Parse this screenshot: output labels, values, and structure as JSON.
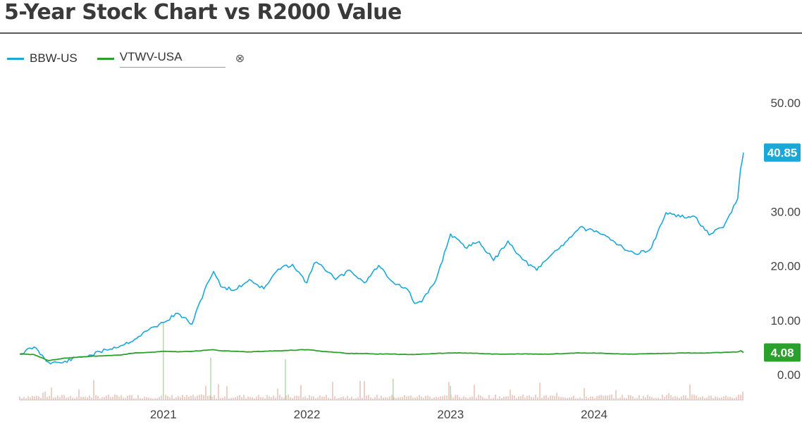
{
  "title": "5-Year Stock Chart vs R2000 Value",
  "legend": {
    "series1": "BBW-US",
    "series2": "VTWV-USA",
    "remove_icon": "⊗"
  },
  "colors": {
    "series1": "#1ba8d8",
    "series2": "#2ca02c",
    "volume": "#d9a090"
  },
  "chart_data": {
    "type": "line",
    "title": "5-Year Stock Chart vs R2000 Value",
    "xlabel": "",
    "ylabel": "",
    "ylim": [
      0,
      50
    ],
    "yticks": [
      "50.00",
      "40.00",
      "30.00",
      "20.00",
      "10.00",
      "0.00"
    ],
    "xticks": [
      "2021",
      "2022",
      "2023",
      "2024"
    ],
    "x": [
      2020.0,
      2020.1,
      2020.2,
      2020.3,
      2020.4,
      2020.5,
      2020.6,
      2020.7,
      2020.8,
      2020.9,
      2021.0,
      2021.1,
      2021.2,
      2021.3,
      2021.35,
      2021.4,
      2021.5,
      2021.6,
      2021.7,
      2021.8,
      2021.9,
      2022.0,
      2022.05,
      2022.1,
      2022.2,
      2022.3,
      2022.4,
      2022.5,
      2022.6,
      2022.7,
      2022.75,
      2022.8,
      2022.9,
      2023.0,
      2023.1,
      2023.2,
      2023.3,
      2023.4,
      2023.5,
      2023.6,
      2023.7,
      2023.8,
      2023.9,
      2024.0,
      2024.1,
      2024.2,
      2024.3,
      2024.4,
      2024.5,
      2024.6,
      2024.7,
      2024.8,
      2024.9,
      2025.0,
      2025.02,
      2025.04
    ],
    "series": [
      {
        "name": "BBW-US",
        "last_label": "40.85",
        "values": [
          3.8,
          5.1,
          2.3,
          2.2,
          3.2,
          3.6,
          4.6,
          5.3,
          6.5,
          8.3,
          9.6,
          11.3,
          9.3,
          16.5,
          19.0,
          16.2,
          15.6,
          17.5,
          15.8,
          19.4,
          20.3,
          16.9,
          20.5,
          20.2,
          17.5,
          19.2,
          16.9,
          20.1,
          17.0,
          15.7,
          13.1,
          13.4,
          17.5,
          25.9,
          23.4,
          24.5,
          21.0,
          24.6,
          21.2,
          19.2,
          22.0,
          24.4,
          27.1,
          26.3,
          25.3,
          23.4,
          22.1,
          23.4,
          29.8,
          29.0,
          29.1,
          25.7,
          27.1,
          32.4,
          37.9,
          40.85
        ]
      },
      {
        "name": "VTWV-USA",
        "last_label": "4.08",
        "values": [
          3.8,
          3.7,
          2.6,
          3.0,
          3.2,
          3.4,
          3.5,
          3.6,
          4.0,
          4.1,
          4.3,
          4.2,
          4.3,
          4.5,
          4.6,
          4.4,
          4.3,
          4.2,
          4.3,
          4.4,
          4.5,
          4.6,
          4.5,
          4.3,
          4.1,
          3.9,
          3.9,
          3.8,
          3.8,
          3.7,
          3.7,
          3.8,
          3.9,
          4.0,
          4.0,
          3.9,
          3.8,
          3.8,
          3.8,
          3.8,
          3.8,
          3.9,
          4.0,
          4.0,
          3.9,
          3.8,
          3.8,
          3.9,
          3.9,
          4.0,
          4.0,
          4.0,
          4.1,
          4.2,
          4.4,
          4.08
        ]
      }
    ]
  }
}
